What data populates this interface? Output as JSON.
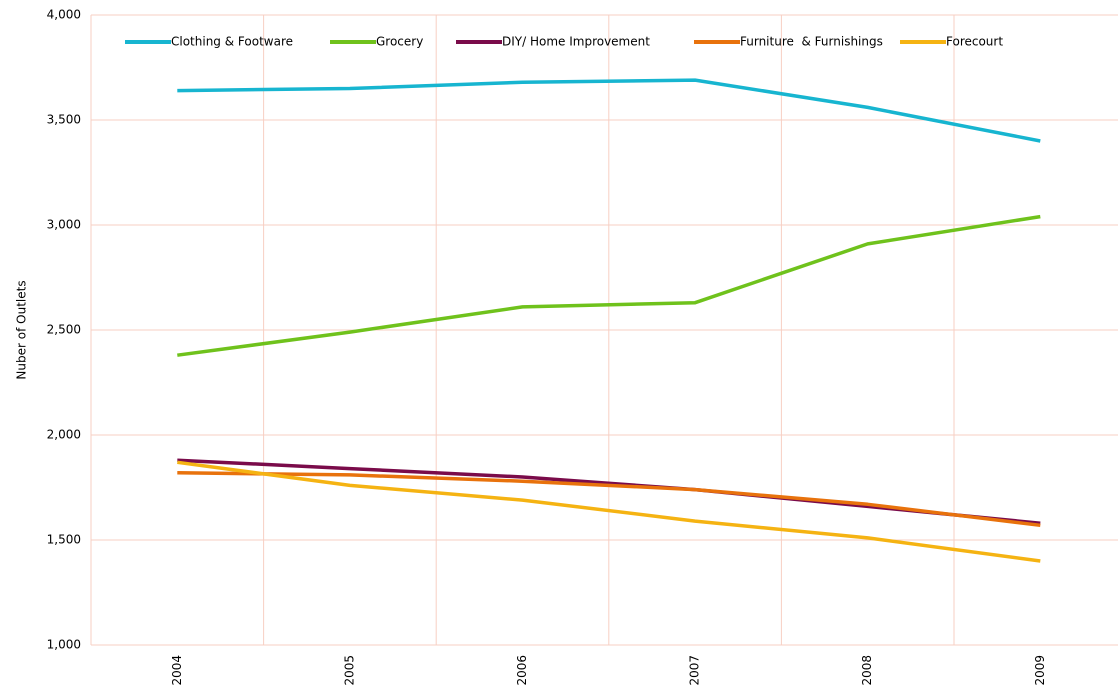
{
  "chart_data": {
    "type": "line",
    "y_label": "Nuber of Outlets",
    "categories": [
      "2004",
      "2005",
      "2006",
      "2007",
      "2008",
      "2009"
    ],
    "series": [
      {
        "name": "Clothing & Footware",
        "color": "#17b5d0",
        "values": [
          3640,
          3650,
          3680,
          3690,
          3560,
          3400
        ]
      },
      {
        "name": "Grocery",
        "color": "#6fc21c",
        "values": [
          2380,
          2490,
          2610,
          2630,
          2910,
          3040
        ]
      },
      {
        "name": "DIY/ Home Improvement",
        "color": "#7a0b4a",
        "values": [
          1880,
          1840,
          1800,
          1740,
          1660,
          1580
        ]
      },
      {
        "name": "Furniture  & Furnishings",
        "color": "#e8720c",
        "values": [
          1820,
          1810,
          1780,
          1740,
          1670,
          1570
        ]
      },
      {
        "name": "Forecourt",
        "color": "#f5b312",
        "values": [
          1870,
          1760,
          1690,
          1590,
          1510,
          1400
        ]
      }
    ],
    "ylim": [
      1000,
      4000
    ],
    "yticks": [
      {
        "value": 1000,
        "label": "1,000"
      },
      {
        "value": 1500,
        "label": "1,500"
      },
      {
        "value": 2000,
        "label": "2,000"
      },
      {
        "value": 2500,
        "label": "2,500"
      },
      {
        "value": 3000,
        "label": "3,000"
      },
      {
        "value": 3500,
        "label": "3,500"
      },
      {
        "value": 4000,
        "label": "4,000"
      }
    ],
    "grid": true,
    "legend": "top"
  }
}
